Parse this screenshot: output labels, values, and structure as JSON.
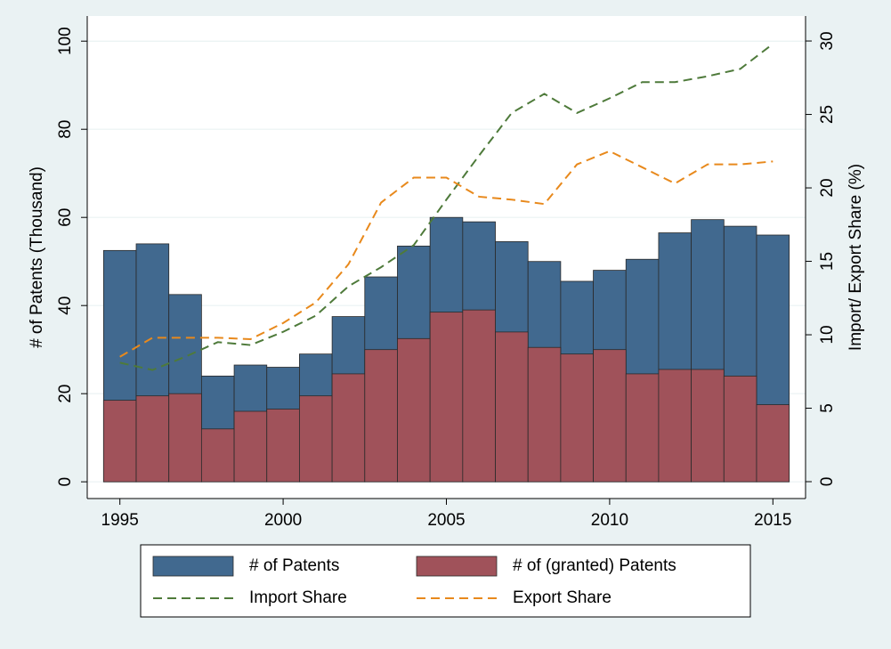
{
  "chart_data": {
    "type": "bar",
    "ylabel": "# of Patents (Thousand)",
    "y2label": "Import/ Export Share (%)",
    "xlim": [
      1994,
      2016
    ],
    "xticks": [
      1995,
      2000,
      2005,
      2010,
      2015
    ],
    "ylim": [
      -3.8,
      105.7
    ],
    "yticks": [
      0,
      20,
      40,
      60,
      80,
      100
    ],
    "y2lim": [
      -1.15,
      31.7
    ],
    "y2ticks": [
      0,
      5,
      10,
      15,
      20,
      25,
      30
    ],
    "grid": true,
    "legend": "bottom",
    "x": [
      1995,
      1996,
      1997,
      1998,
      1999,
      2000,
      2001,
      2002,
      2003,
      2004,
      2005,
      2006,
      2007,
      2008,
      2009,
      2010,
      2011,
      2012,
      2013,
      2014,
      2015
    ],
    "series": [
      {
        "name": "# of Patents",
        "type": "bar",
        "color": "#41698f",
        "values": [
          52.5,
          54,
          42.5,
          24,
          26.5,
          26,
          29,
          37.5,
          46.5,
          53.5,
          60,
          59,
          54.5,
          50,
          45.5,
          48,
          50.5,
          56.5,
          59.5,
          58,
          56
        ]
      },
      {
        "name": "# of (granted) Patents",
        "type": "bar",
        "color": "#a0525a",
        "values": [
          18.5,
          19.5,
          20,
          12,
          16,
          16.5,
          19.5,
          24.5,
          30,
          32.5,
          38.5,
          39,
          34,
          30.5,
          29,
          30,
          24.5,
          25.5,
          25.5,
          24,
          17.5
        ]
      },
      {
        "name": "Import Share",
        "type": "line",
        "axis": "y2",
        "color": "#4e7a3a",
        "values": [
          8.1,
          7.6,
          8.5,
          9.5,
          9.3,
          10.2,
          11.3,
          13.3,
          14.6,
          16.1,
          19.2,
          22.2,
          25.1,
          26.4,
          25.1,
          26.1,
          27.2,
          27.2,
          27.6,
          28.1,
          29.8
        ]
      },
      {
        "name": "Export Share",
        "type": "line",
        "axis": "y2",
        "color": "#e8891c",
        "values": [
          8.5,
          9.8,
          9.8,
          9.8,
          9.7,
          10.8,
          12.2,
          14.8,
          19.0,
          20.7,
          20.7,
          19.4,
          19.2,
          18.9,
          21.6,
          22.5,
          21.4,
          20.3,
          21.6,
          21.6,
          21.8
        ]
      }
    ]
  }
}
